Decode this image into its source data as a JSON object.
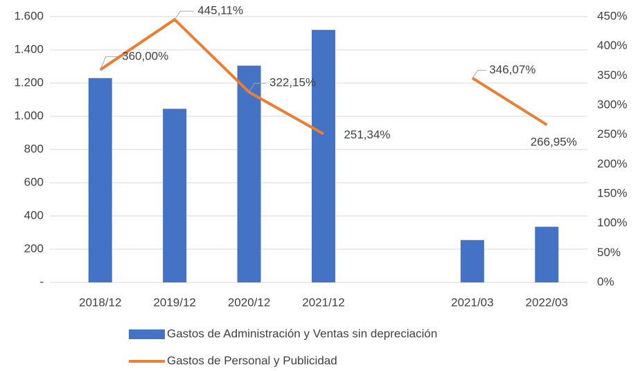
{
  "chart_data": {
    "type": "bar_line",
    "categories": [
      "2018/12",
      "2019/12",
      "2020/12",
      "2021/12",
      null,
      "2021/03",
      "2022/03"
    ],
    "series": [
      {
        "name": "Gastos de Administración y Ventas sin depreciación",
        "type": "bar",
        "color": "#4472c4",
        "values": [
          1230,
          1045,
          1305,
          1520,
          null,
          255,
          335
        ]
      },
      {
        "name": "Gastos de Personal y Publicidad",
        "type": "line",
        "axis": "y2",
        "color": "#ed7d31",
        "values": [
          360.0,
          445.11,
          322.15,
          251.34,
          null,
          346.07,
          266.95
        ],
        "value_labels": [
          "360,00%",
          "445,11%",
          "322,15%",
          "251,34%",
          null,
          "346,07%",
          "266,95%"
        ]
      }
    ],
    "ylim": [
      0,
      1600
    ],
    "yticks": [
      {
        "value": 0,
        "label": "-"
      },
      200,
      400,
      600,
      800,
      {
        "value": 1000,
        "label": "1.000"
      },
      {
        "value": 1200,
        "label": "1.200"
      },
      {
        "value": 1400,
        "label": "1.400"
      },
      {
        "value": 1600,
        "label": "1.600"
      }
    ],
    "y2lim": [
      0,
      450
    ],
    "y2ticks": [
      {
        "value": 0,
        "label": "0%"
      },
      {
        "value": 50,
        "label": "50%"
      },
      {
        "value": 100,
        "label": "100%"
      },
      {
        "value": 150,
        "label": "150%"
      },
      {
        "value": 200,
        "label": "200%"
      },
      {
        "value": 250,
        "label": "250%"
      },
      {
        "value": 300,
        "label": "300%"
      },
      {
        "value": 350,
        "label": "350%"
      },
      {
        "value": 400,
        "label": "400%"
      },
      {
        "value": 450,
        "label": "450%"
      }
    ],
    "grid": true,
    "legend": "bottom"
  }
}
